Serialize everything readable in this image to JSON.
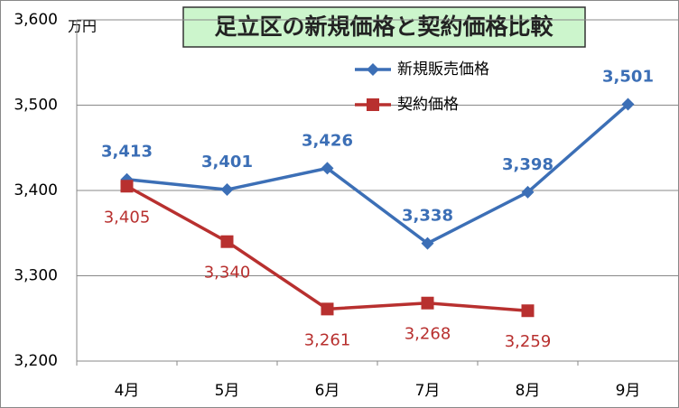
{
  "chart_data": {
    "type": "line",
    "title": "足立区の新規価格と契約価格比較",
    "unit_label": "万円",
    "categories": [
      "4月",
      "5月",
      "6月",
      "7月",
      "8月",
      "9月"
    ],
    "series": [
      {
        "name": "新規販売価格",
        "color": "#3c6fb6",
        "marker": "diamond",
        "values": [
          3413,
          3401,
          3426,
          3338,
          3398,
          3501
        ],
        "value_labels": [
          "3,413",
          "3,401",
          "3,426",
          "3,338",
          "3,398",
          "3,501"
        ]
      },
      {
        "name": "契約価格",
        "color": "#b8302f",
        "marker": "square",
        "values": [
          3405,
          3340,
          3261,
          3268,
          3259,
          null
        ],
        "value_labels": [
          "3,405",
          "3,340",
          "3,261",
          "3,268",
          "3,259",
          null
        ]
      }
    ],
    "ylim": [
      3200,
      3600
    ],
    "yticks": [
      {
        "value": 3200,
        "label": "3,200"
      },
      {
        "value": 3300,
        "label": "3,300"
      },
      {
        "value": 3400,
        "label": "3,400"
      },
      {
        "value": 3500,
        "label": "3,500"
      },
      {
        "value": 3600,
        "label": "3,600"
      }
    ],
    "grid": true
  }
}
